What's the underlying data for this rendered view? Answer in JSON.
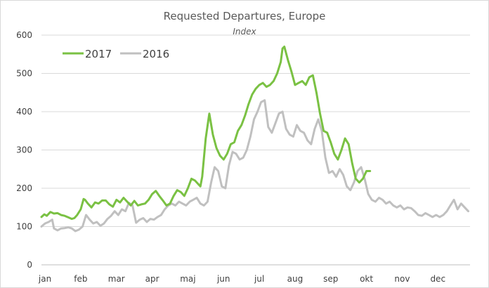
{
  "chart_data": {
    "type": "line",
    "title": "Requested Departures, Europe",
    "subtitle": "Index",
    "ylim": [
      0,
      600
    ],
    "y_ticks": [
      0,
      100,
      200,
      300,
      400,
      500,
      600
    ],
    "x_tick_labels": [
      "jan",
      "feb",
      "mar",
      "apr",
      "maj",
      "jun",
      "jul",
      "aug",
      "sep",
      "okt",
      "nov",
      "dec"
    ],
    "xlim": [
      0,
      12
    ],
    "grid": "horizontal",
    "legend_placement": "top-left",
    "series": [
      {
        "name": "2017",
        "color": "#7ac143",
        "x": [
          0.0,
          0.08,
          0.15,
          0.25,
          0.35,
          0.45,
          0.55,
          0.65,
          0.75,
          0.85,
          0.92,
          1.0,
          1.1,
          1.18,
          1.22,
          1.3,
          1.4,
          1.5,
          1.6,
          1.7,
          1.8,
          1.9,
          2.0,
          2.1,
          2.2,
          2.3,
          2.4,
          2.5,
          2.6,
          2.7,
          2.8,
          2.9,
          3.0,
          3.1,
          3.2,
          3.3,
          3.4,
          3.5,
          3.6,
          3.7,
          3.8,
          3.9,
          4.0,
          4.1,
          4.2,
          4.3,
          4.4,
          4.45,
          4.5,
          4.6,
          4.7,
          4.8,
          4.9,
          5.0,
          5.1,
          5.2,
          5.3,
          5.4,
          5.5,
          5.6,
          5.7,
          5.8,
          5.9,
          6.0,
          6.1,
          6.2,
          6.3,
          6.4,
          6.5,
          6.6,
          6.7,
          6.75,
          6.8,
          6.9,
          7.0,
          7.1,
          7.2,
          7.3,
          7.4,
          7.5,
          7.6,
          7.7,
          7.8,
          7.9,
          8.0,
          8.1,
          8.2,
          8.3,
          8.4,
          8.5,
          8.6,
          8.7,
          8.8,
          8.9,
          9.0,
          9.1,
          9.2,
          9.3,
          9.4,
          9.5,
          9.6,
          9.7
        ],
        "values": [
          125,
          132,
          128,
          138,
          134,
          135,
          130,
          128,
          124,
          120,
          122,
          130,
          145,
          172,
          170,
          160,
          150,
          163,
          160,
          168,
          168,
          158,
          152,
          170,
          163,
          175,
          165,
          155,
          167,
          155,
          158,
          160,
          170,
          185,
          193,
          180,
          168,
          155,
          160,
          180,
          195,
          190,
          180,
          200,
          225,
          220,
          210,
          205,
          230,
          330,
          395,
          340,
          305,
          285,
          275,
          290,
          315,
          320,
          350,
          365,
          390,
          420,
          445,
          460,
          470,
          475,
          465,
          470,
          480,
          500,
          530,
          565,
          570,
          535,
          505,
          470,
          475,
          480,
          470,
          490,
          495,
          450,
          395,
          350,
          345,
          320,
          290,
          275,
          300,
          330,
          315,
          265,
          225,
          215,
          225,
          245,
          245,
          null,
          null,
          null,
          null,
          null
        ]
      },
      {
        "name": "2016",
        "color": "#c0c0c0",
        "x": [
          0.0,
          0.1,
          0.2,
          0.3,
          0.35,
          0.45,
          0.55,
          0.65,
          0.75,
          0.85,
          0.95,
          1.05,
          1.15,
          1.25,
          1.35,
          1.45,
          1.55,
          1.65,
          1.75,
          1.85,
          1.95,
          2.05,
          2.15,
          2.25,
          2.35,
          2.45,
          2.55,
          2.65,
          2.75,
          2.85,
          2.95,
          3.05,
          3.15,
          3.25,
          3.35,
          3.45,
          3.55,
          3.65,
          3.75,
          3.85,
          3.95,
          4.05,
          4.15,
          4.25,
          4.35,
          4.45,
          4.55,
          4.65,
          4.75,
          4.85,
          4.95,
          5.05,
          5.15,
          5.25,
          5.35,
          5.45,
          5.55,
          5.65,
          5.75,
          5.85,
          5.95,
          6.05,
          6.15,
          6.25,
          6.35,
          6.45,
          6.55,
          6.65,
          6.75,
          6.85,
          6.95,
          7.05,
          7.15,
          7.25,
          7.35,
          7.45,
          7.55,
          7.65,
          7.75,
          7.85,
          7.95,
          8.05,
          8.15,
          8.25,
          8.35,
          8.45,
          8.55,
          8.65,
          8.75,
          8.85,
          8.95,
          9.05,
          9.15,
          9.25,
          9.35,
          9.45,
          9.55,
          9.65,
          9.75,
          9.85,
          9.95,
          10.05,
          10.15,
          10.25,
          10.35,
          10.45,
          10.55,
          10.65,
          10.75,
          10.85,
          10.95,
          11.05,
          11.15,
          11.25,
          11.35,
          11.45,
          11.55,
          11.65,
          11.75,
          11.85,
          11.95
        ],
        "values": [
          100,
          108,
          112,
          118,
          95,
          90,
          95,
          96,
          98,
          95,
          88,
          92,
          100,
          130,
          118,
          108,
          112,
          102,
          108,
          120,
          128,
          140,
          130,
          145,
          140,
          162,
          155,
          110,
          118,
          122,
          112,
          120,
          118,
          125,
          130,
          145,
          155,
          160,
          155,
          165,
          160,
          155,
          165,
          170,
          175,
          160,
          155,
          165,
          215,
          255,
          245,
          205,
          200,
          260,
          295,
          290,
          275,
          280,
          300,
          335,
          380,
          400,
          425,
          430,
          360,
          345,
          370,
          395,
          400,
          355,
          340,
          335,
          365,
          350,
          345,
          325,
          315,
          355,
          380,
          350,
          280,
          240,
          245,
          230,
          250,
          235,
          205,
          195,
          215,
          245,
          255,
          225,
          185,
          170,
          165,
          175,
          170,
          160,
          165,
          155,
          150,
          155,
          145,
          150,
          148,
          140,
          130,
          128,
          135,
          130,
          125,
          130,
          125,
          130,
          140,
          155,
          170,
          145,
          160,
          150,
          140
        ]
      }
    ]
  }
}
